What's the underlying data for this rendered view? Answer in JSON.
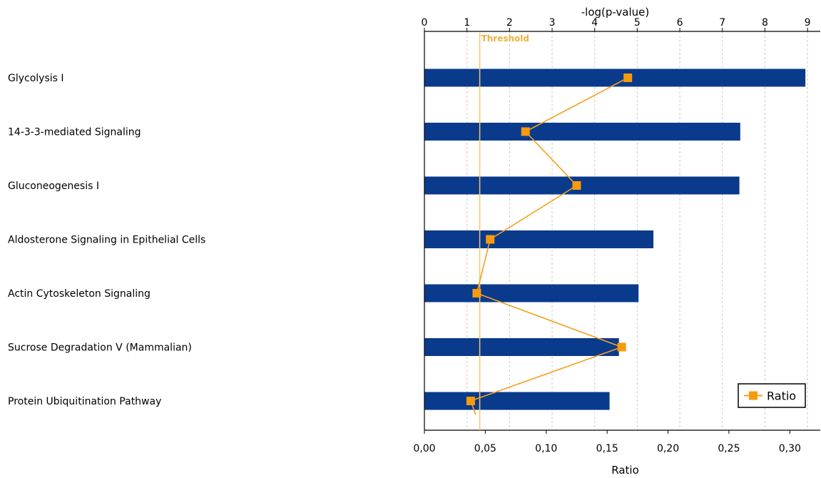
{
  "chart_data": {
    "type": "bar",
    "orientation": "horizontal",
    "categories": [
      "Glycolysis I",
      "14-3-3-mediated Signaling",
      "Gluconeogenesis I",
      "Aldosterone Signaling in Epithelial Cells",
      "Actin Cytoskeleton Signaling",
      "Sucrose Degradation V (Mammalian)",
      "Protein Ubiquitination Pathway"
    ],
    "series": [
      {
        "axis": "top",
        "values": [
          8.95,
          7.42,
          7.4,
          5.38,
          5.03,
          4.57,
          4.35
        ]
      },
      {
        "name": "Ratio",
        "axis": "bottom",
        "type": "line",
        "values": [
          0.167,
          0.083,
          0.125,
          0.054,
          0.043,
          0.162,
          0.038
        ]
      }
    ],
    "top_axis": {
      "label": "-log(p-value)",
      "range": [
        0,
        9.3
      ],
      "ticks": [
        "0",
        "1",
        "2",
        "3",
        "4",
        "5",
        "6",
        "7",
        "8",
        "9"
      ]
    },
    "bottom_axis": {
      "label": "Ratio",
      "range": [
        0,
        0.325
      ],
      "ticks": [
        "0,00",
        "0,05",
        "0,10",
        "0,15",
        "0,20",
        "0,25",
        "0,30"
      ]
    },
    "threshold": {
      "label": "Threshold",
      "value": 1.3,
      "axis": "top"
    },
    "line_tail_end": 0.042,
    "legend": {
      "placement": "bottom-right",
      "entries": [
        "Ratio"
      ]
    },
    "grid": {
      "vertical_dashed": true
    },
    "colors": {
      "bar": "#0a3a8c",
      "ratio_line": "#f4a020",
      "ratio_marker": "#f79a0c",
      "threshold": "#f5c66a",
      "threshold_text": "#f0b040",
      "grid": "#c8c8c8",
      "axis": "#000000"
    }
  }
}
